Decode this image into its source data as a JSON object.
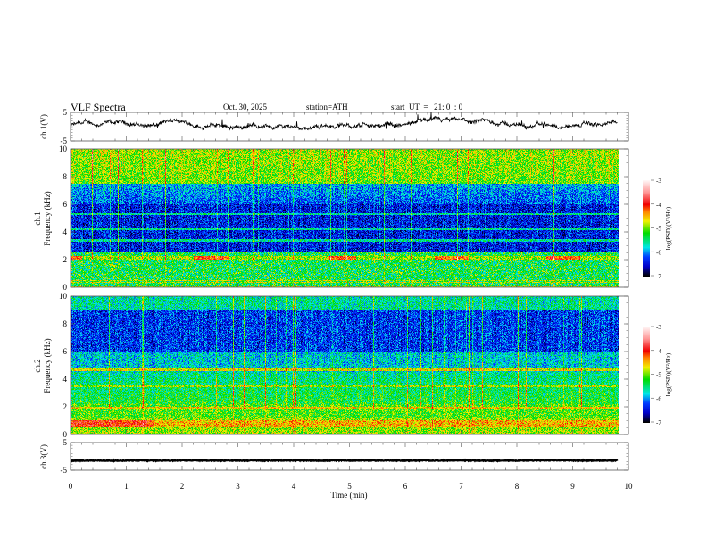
{
  "header": {
    "title": "VLF  Spectra",
    "date": "Oct. 30, 2025",
    "station": "station=ATH",
    "start": "start  UT  =   21: 0  : 0"
  },
  "chart_data": [
    {
      "type": "line",
      "name": "ch1-waveform",
      "ylabel": "ch.1(V)",
      "ylim": [
        -5,
        5
      ],
      "yticks": [
        "5",
        "-5"
      ],
      "xlim": [
        0,
        10
      ],
      "data_end_min": 9.8,
      "mean_level": 0.5,
      "amplitude_range": [
        -3,
        3
      ]
    },
    {
      "type": "heatmap",
      "name": "ch1-spectrogram",
      "ylabel": "ch.1\nFrequency (kHz)",
      "ylabel_lines": [
        "ch.1",
        "Frequency (kHz)"
      ],
      "ylim": [
        0,
        10
      ],
      "yticks": [
        "0",
        "2",
        "4",
        "6",
        "8",
        "10"
      ],
      "xlim": [
        0,
        10
      ],
      "colorbar": {
        "label": "log(PSD)(V²/Hz)",
        "range": [
          -7,
          -3
        ],
        "ticks": [
          "-3",
          "-4",
          "-5",
          "-6",
          "-7"
        ]
      }
    },
    {
      "type": "heatmap",
      "name": "ch2-spectrogram",
      "ylabel_lines": [
        "ch.2",
        "Frequency (kHz)"
      ],
      "ylim": [
        0,
        10
      ],
      "yticks": [
        "0",
        "2",
        "4",
        "6",
        "8",
        "10"
      ],
      "xlim": [
        0,
        10
      ],
      "colorbar": {
        "label": "log(PSD)(V²/Hz)",
        "range": [
          -7,
          -3
        ],
        "ticks": [
          "-3",
          "-4",
          "-5",
          "-6",
          "-7"
        ]
      }
    },
    {
      "type": "line",
      "name": "ch3-waveform",
      "ylabel": "ch.3(V)",
      "ylim": [
        -5,
        5
      ],
      "yticks": [
        "5",
        "-5"
      ],
      "xlim": [
        0,
        10
      ],
      "mean_level": -1.5
    }
  ],
  "xaxis": {
    "label": "Time  (min)",
    "ticks": [
      "0",
      "1",
      "2",
      "3",
      "4",
      "5",
      "6",
      "7",
      "8",
      "9",
      "10"
    ]
  }
}
